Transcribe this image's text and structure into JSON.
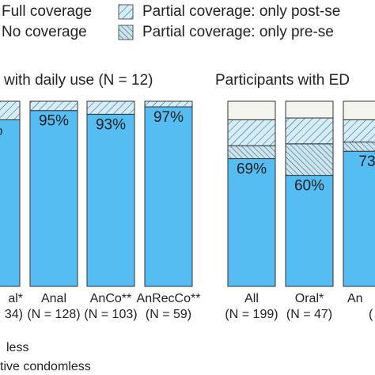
{
  "chart_data": [
    {
      "type": "stacked_bar",
      "title": "with daily use (N = 12)",
      "categories": [
        "al*",
        "Anal",
        "AnCo**",
        "AnRecCo**"
      ],
      "category_n": [
        "34)",
        "(N = 128)",
        "(N = 103)",
        "(N = 59)"
      ],
      "ylim": [
        0,
        100
      ],
      "series": [
        {
          "name": "Full coverage",
          "color": "#56bdf2",
          "values": [
            90,
            95,
            93,
            97
          ],
          "value_labels": [
            "%",
            "95%",
            "93%",
            "97%"
          ]
        },
        {
          "name": "Partial coverage: only pre-se",
          "color": "#c9e6f0",
          "hatch": "cross",
          "values": [
            0,
            0,
            0,
            0
          ]
        },
        {
          "name": "Partial coverage: only post-se",
          "color": "#d4eef9",
          "hatch": "single",
          "values": [
            10,
            5,
            7,
            3
          ]
        },
        {
          "name": "No coverage",
          "color": "#f4f4ee",
          "values": [
            0,
            0,
            0,
            0
          ]
        }
      ]
    },
    {
      "type": "stacked_bar",
      "title": "Participants with ED",
      "categories": [
        "All",
        "Oral*",
        "An"
      ],
      "category_n": [
        "(N = 199)",
        "(N = 47)",
        "("
      ],
      "ylim": [
        0,
        100
      ],
      "series": [
        {
          "name": "Full coverage",
          "color": "#56bdf2",
          "values": [
            69,
            60,
            73
          ],
          "value_labels": [
            "69%",
            "60%",
            "73"
          ]
        },
        {
          "name": "Partial coverage: only pre-se",
          "color": "#c9e6f0",
          "hatch": "cross",
          "values": [
            7,
            17,
            5
          ]
        },
        {
          "name": "Partial coverage: only post-se",
          "color": "#d4eef9",
          "hatch": "single",
          "values": [
            14,
            14,
            12
          ]
        },
        {
          "name": "No coverage",
          "color": "#f4f4ee",
          "values": [
            10,
            9,
            10
          ]
        }
      ]
    }
  ],
  "footnotes": [
    "less",
    "tive condomless"
  ]
}
